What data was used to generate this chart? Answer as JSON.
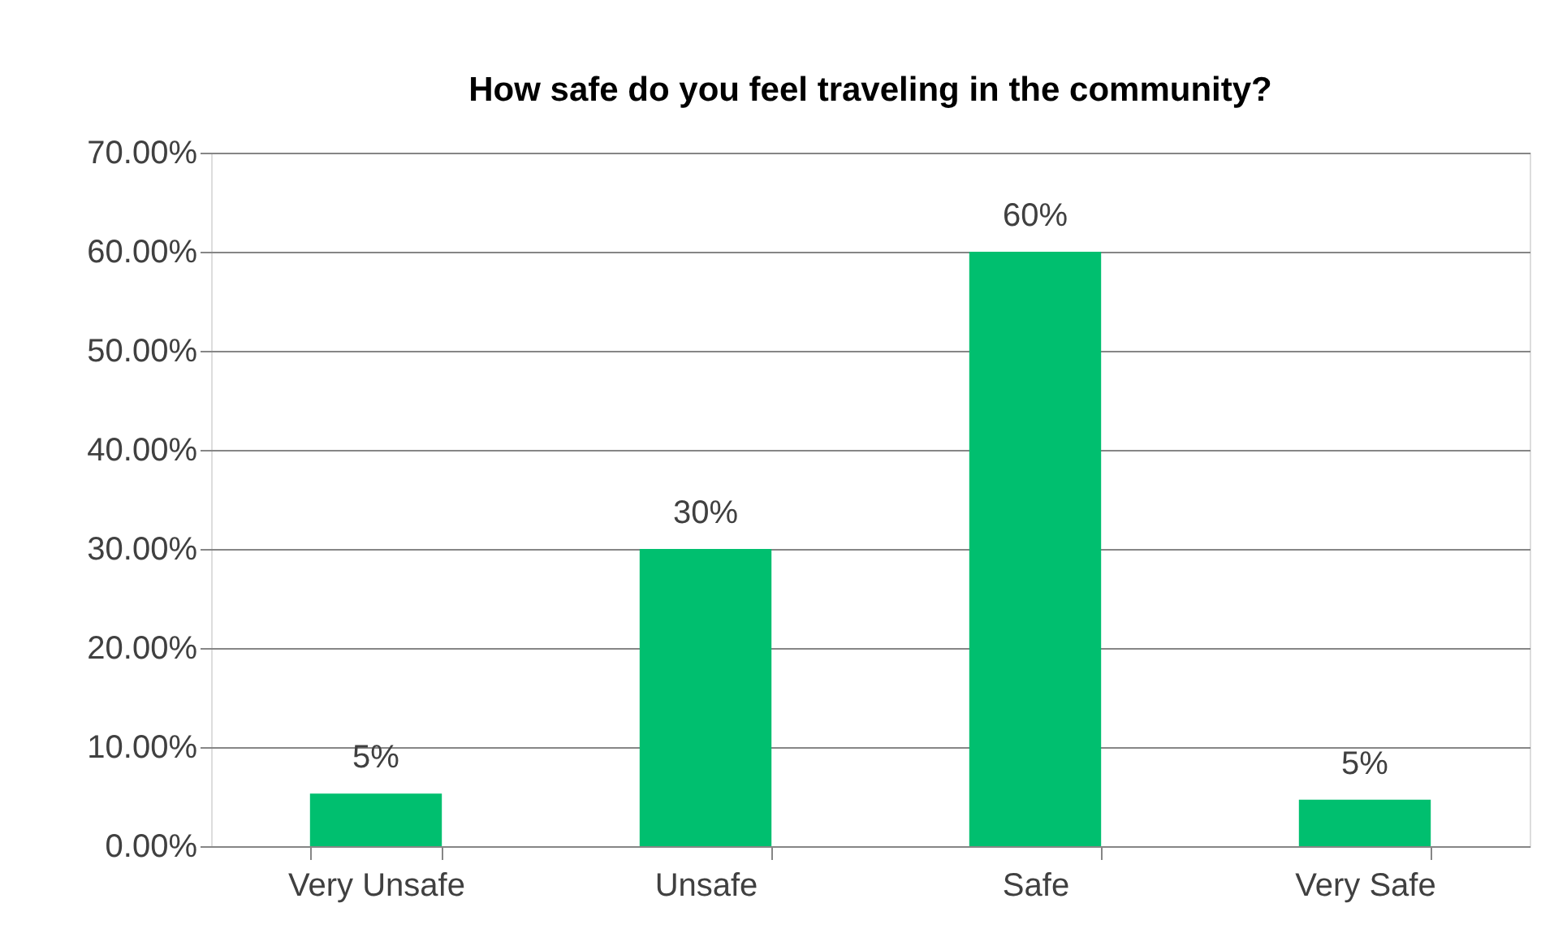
{
  "chart_data": {
    "type": "bar",
    "title": "How safe do you feel traveling in the community?",
    "categories": [
      "Very Unsafe",
      "Unsafe",
      "Safe",
      "Very Safe"
    ],
    "values": [
      5.3,
      30,
      60,
      4.7
    ],
    "value_labels": [
      "5%",
      "30%",
      "60%",
      "5%"
    ],
    "color": "#00bf6f",
    "ylim": [
      0,
      70
    ],
    "yticks": [
      {
        "value": 0,
        "label": "0.00%"
      },
      {
        "value": 10,
        "label": "10.00%"
      },
      {
        "value": 20,
        "label": "20.00%"
      },
      {
        "value": 30,
        "label": "30.00%"
      },
      {
        "value": 40,
        "label": "40.00%"
      },
      {
        "value": 50,
        "label": "50.00%"
      },
      {
        "value": 60,
        "label": "60.00%"
      },
      {
        "value": 70,
        "label": "70.00%"
      }
    ],
    "grid": "y"
  }
}
